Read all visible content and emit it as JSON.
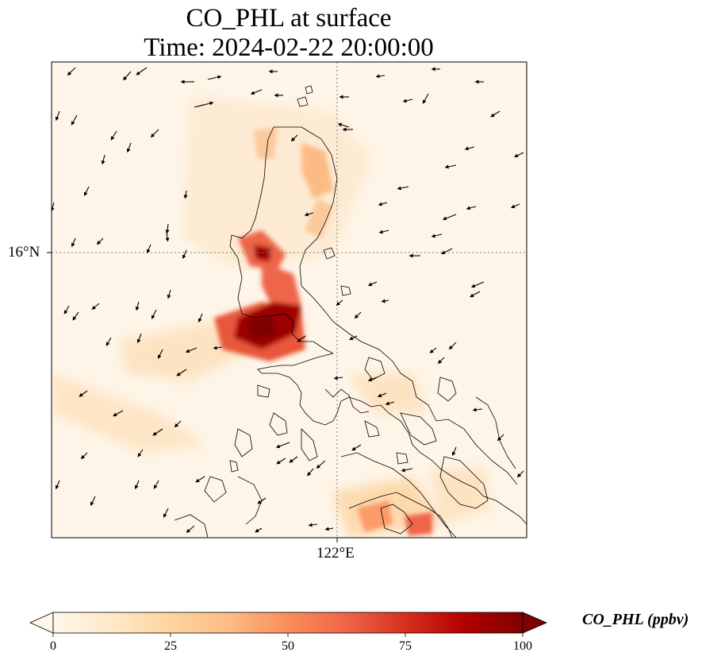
{
  "title": {
    "line1": "CO_PHL at surface",
    "line2": "Time: 2024-02-22 20:00:00"
  },
  "axes": {
    "lat_label": "16°N",
    "lon_label": "122°E"
  },
  "colorbar": {
    "label": "CO_PHL (ppbv)",
    "ticks": [
      "0",
      "25",
      "50",
      "75",
      "100"
    ],
    "vmin": 0,
    "vmax": 100,
    "colormap": "OrRd",
    "colors": [
      "#fff7ec",
      "#fee8c8",
      "#fdd49e",
      "#fdbb84",
      "#fc8d59",
      "#ef6548",
      "#d7301f",
      "#b30000",
      "#7f0000"
    ],
    "extend": "both"
  },
  "colors": {
    "coastline": "#000000",
    "gridline": "#808080",
    "background": "#fef5e8"
  }
}
